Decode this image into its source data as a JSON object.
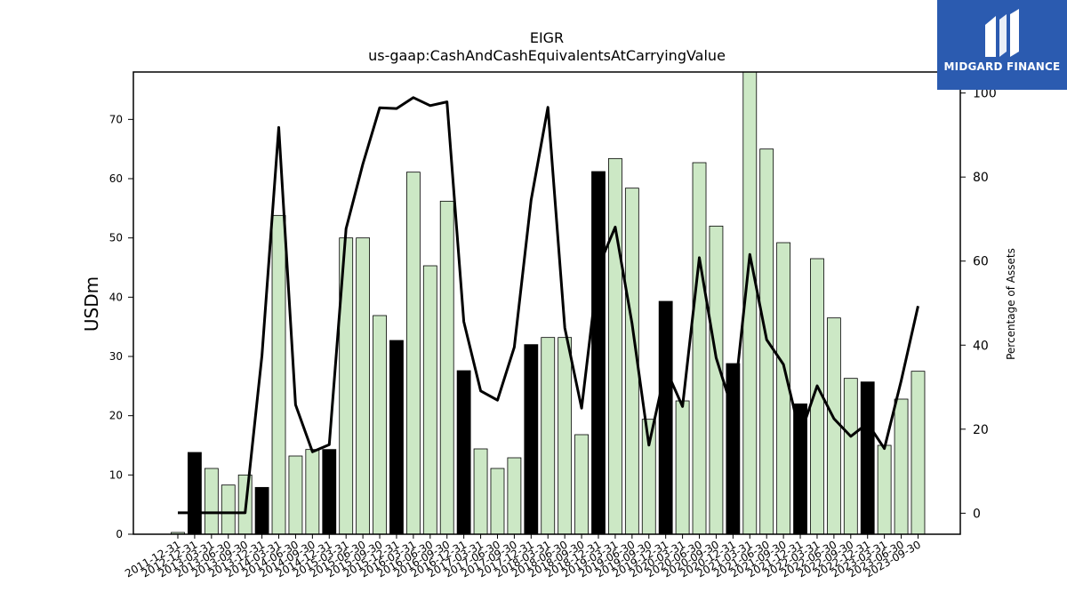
{
  "chart_data": {
    "type": "bar",
    "title": "EIGR",
    "subtitle": "us-gaap:CashAndCashEquivalentsAtCarryingValue",
    "ylabel": "USDm",
    "y2label": "Percentage of Assets",
    "ylim": [
      0,
      78
    ],
    "y2lim": [
      -5,
      105
    ],
    "yticks": [
      0,
      10,
      20,
      30,
      40,
      50,
      60,
      70
    ],
    "y2ticks": [
      0,
      20,
      40,
      60,
      80,
      100
    ],
    "colors": {
      "bar": "#cce8c5",
      "bar_highlight": "#000000",
      "line": "#000000"
    },
    "categories": [
      "2011-12-31",
      "2012-12-31",
      "2013-03-31",
      "2013-06-30",
      "2013-09-30",
      "2013-12-31",
      "2014-03-31",
      "2014-06-30",
      "2014-09-30",
      "2014-12-31",
      "2015-03-31",
      "2015-06-30",
      "2015-09-30",
      "2015-12-31",
      "2016-03-31",
      "2016-06-30",
      "2016-09-30",
      "2016-12-31",
      "2017-03-31",
      "2017-06-30",
      "2017-09-30",
      "2017-12-31",
      "2018-03-31",
      "2018-06-30",
      "2018-09-30",
      "2018-12-31",
      "2019-03-31",
      "2019-06-30",
      "2019-09-30",
      "2019-12-31",
      "2020-03-31",
      "2020-06-30",
      "2020-09-30",
      "2020-12-31",
      "2021-03-31",
      "2021-06-30",
      "2021-09-30",
      "2021-12-31",
      "2022-03-31",
      "2022-06-30",
      "2022-09-30",
      "2022-12-31",
      "2023-03-31",
      "2023-06-30",
      "2023-09-30"
    ],
    "series": [
      {
        "values": [
          0.3,
          13.8,
          11.1,
          8.3,
          10.0,
          7.9,
          53.8,
          13.2,
          14.3,
          14.3,
          50.0,
          50.0,
          36.9,
          32.7,
          61.1,
          45.3,
          56.2,
          27.6,
          14.4,
          11.1,
          12.9,
          32.0,
          33.2,
          33.2,
          16.8,
          61.2,
          63.4,
          58.4,
          19.4,
          39.3,
          22.5,
          62.7,
          52.0,
          28.8,
          78.0,
          65.0,
          49.2,
          22.0,
          46.5,
          36.5,
          26.3,
          25.7,
          15.0,
          22.8,
          27.5
        ]
      },
      {
        "type": "line",
        "values": [
          0.1,
          0.1,
          0.1,
          0.1,
          0.1,
          37.5,
          91.8,
          25.8,
          14.6,
          16.3,
          67.7,
          83.1,
          96.5,
          96.3,
          98.9,
          97.0,
          97.9,
          45.6,
          29.1,
          26.9,
          39.5,
          74.5,
          96.6,
          44.1,
          25.0,
          58.6,
          68.1,
          45.2,
          16.2,
          34.4,
          25.4,
          60.8,
          37.0,
          24.2,
          61.6,
          41.3,
          35.4,
          18.7,
          30.3,
          22.5,
          18.3,
          21.4,
          15.4,
          31.6,
          49.3
        ]
      }
    ],
    "highlight_indices": [
      1,
      5,
      9,
      13,
      17,
      21,
      25,
      29,
      33,
      37,
      41
    ]
  },
  "logo": {
    "text": "MIDGARD FINANCE"
  }
}
